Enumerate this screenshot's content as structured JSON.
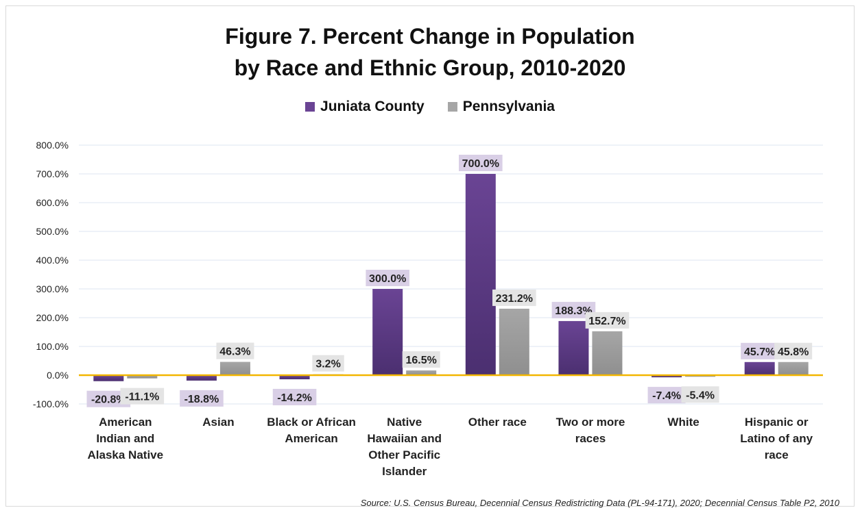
{
  "title_line1": "Figure 7. Percent Change in Population",
  "title_line2": "by Race and Ethnic Group, 2010-2020",
  "source": "Source: U.S. Census Bureau, Decennial Census Redistricting Data (PL-94-171), 2020; Decennial Census Table P2, 2010",
  "colors": {
    "juniata": "#6a4494",
    "pennsylvania": "#a6a6a6",
    "zero_line": "#f2b600",
    "grid": "#dce6f2",
    "juniata_label_bg": "#d9cfe6",
    "pennsylvania_label_bg": "#e4e4e4"
  },
  "chart_data": {
    "type": "bar",
    "title": "Figure 7. Percent Change in Population by Race and Ethnic Group, 2010-2020",
    "categories": [
      [
        "American",
        "Indian and",
        "Alaska Native"
      ],
      [
        "Asian"
      ],
      [
        "Black or African",
        "American"
      ],
      [
        "Native",
        "Hawaiian and",
        "Other Pacific",
        "Islander"
      ],
      [
        "Other race"
      ],
      [
        "Two or more",
        "races"
      ],
      [
        "White"
      ],
      [
        "Hispanic or",
        "Latino of any",
        "race"
      ]
    ],
    "series": [
      {
        "name": "Juniata County",
        "values": [
          -20.8,
          -18.8,
          -14.2,
          300.0,
          700.0,
          188.3,
          -7.4,
          45.7
        ],
        "labels": [
          "-20.8%",
          "-18.8%",
          "-14.2%",
          "300.0%",
          "700.0%",
          "188.3%",
          "-7.4%",
          "45.7%"
        ]
      },
      {
        "name": "Pennsylvania",
        "values": [
          -11.1,
          46.3,
          3.2,
          16.5,
          231.2,
          152.7,
          -5.4,
          45.8
        ],
        "labels": [
          "-11.1%",
          "46.3%",
          "3.2%",
          "16.5%",
          "231.2%",
          "152.7%",
          "-5.4%",
          "45.8%"
        ]
      }
    ],
    "yticks": [
      "800.0%",
      "700.0%",
      "600.0%",
      "500.0%",
      "400.0%",
      "300.0%",
      "200.0%",
      "100.0%",
      "0.0%",
      "-100.0%"
    ],
    "ylim": [
      -100,
      800
    ],
    "grid": true,
    "legend": "top-center"
  }
}
